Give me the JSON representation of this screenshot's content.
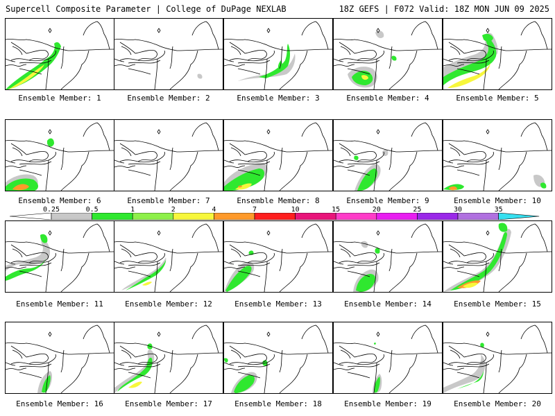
{
  "header": {
    "left": "Supercell Composite Parameter | College of DuPage NEXLAB",
    "right": "18Z GEFS | F072 Valid: 18Z MON JUN 09 2025"
  },
  "colorbar": {
    "levels": [
      "0.25",
      "0.5",
      "1",
      "2",
      "4",
      "7",
      "10",
      "15",
      "20",
      "25",
      "30",
      "35"
    ],
    "colors": [
      "#c8c8c8",
      "#2fe82f",
      "#8ef04a",
      "#f7f73c",
      "#ff9a2a",
      "#ff1f1f",
      "#e8147a",
      "#ff3cc8",
      "#e81ef0",
      "#9a28e8",
      "#b070e0",
      "#36e0f0"
    ]
  },
  "members": [
    {
      "caption": "Ensemble Member: 1"
    },
    {
      "caption": "Ensemble Member: 2"
    },
    {
      "caption": "Ensemble Member: 3"
    },
    {
      "caption": "Ensemble Member: 4"
    },
    {
      "caption": "Ensemble Member: 5"
    },
    {
      "caption": "Ensemble Member: 6"
    },
    {
      "caption": "Ensemble Member: 7"
    },
    {
      "caption": "Ensemble Member: 8"
    },
    {
      "caption": "Ensemble Member: 9"
    },
    {
      "caption": "Ensemble Member: 10"
    },
    {
      "caption": "Ensemble Member: 11"
    },
    {
      "caption": "Ensemble Member: 12"
    },
    {
      "caption": "Ensemble Member: 13"
    },
    {
      "caption": "Ensemble Member: 14"
    },
    {
      "caption": "Ensemble Member: 15"
    },
    {
      "caption": "Ensemble Member: 16"
    },
    {
      "caption": "Ensemble Member: 17"
    },
    {
      "caption": "Ensemble Member: 18"
    },
    {
      "caption": "Ensemble Member: 19"
    },
    {
      "caption": "Ensemble Member: 20"
    }
  ]
}
